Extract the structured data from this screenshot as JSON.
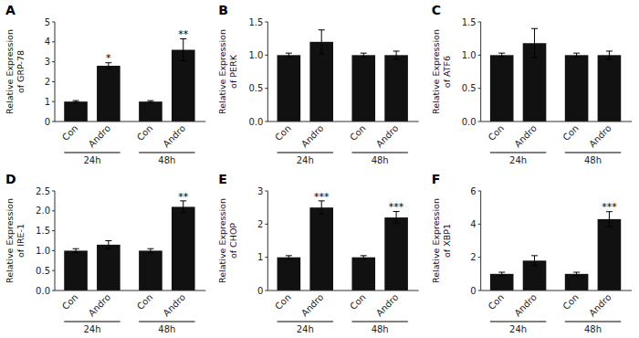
{
  "chart_data": [
    {
      "type": "bar",
      "title": "A",
      "ylabel": "Relative Expression\nof GRP-78",
      "categories": [
        "Con",
        "Andro",
        "Con",
        "Andro"
      ],
      "values": [
        1.0,
        2.8,
        1.0,
        3.6
      ],
      "errors": [
        0.05,
        0.15,
        0.05,
        0.55
      ],
      "significance": [
        null,
        "*",
        null,
        "**"
      ],
      "groups": [
        "24h",
        "48h"
      ],
      "color": "#111111",
      "ylim": [
        0,
        5
      ],
      "yticks": [
        0,
        1,
        2,
        3,
        4,
        5
      ],
      "grid": false
    },
    {
      "type": "bar",
      "title": "B",
      "ylabel": "Relative Expression\nof PERK",
      "categories": [
        "Con",
        "Andro",
        "Con",
        "Andro"
      ],
      "values": [
        1.0,
        1.2,
        1.0,
        1.0
      ],
      "errors": [
        0.03,
        0.18,
        0.03,
        0.06
      ],
      "significance": [
        null,
        null,
        null,
        null
      ],
      "groups": [
        "24h",
        "48h"
      ],
      "color": "#111111",
      "ylim": [
        0,
        1.5
      ],
      "yticks": [
        {
          "value": 0,
          "label": "0.0"
        },
        0.5,
        {
          "value": 1,
          "label": "1.0"
        },
        1.5
      ],
      "grid": false
    },
    {
      "type": "bar",
      "title": "C",
      "ylabel": "Relative Expression\nof ATF6",
      "categories": [
        "Con",
        "Andro",
        "Con",
        "Andro"
      ],
      "values": [
        1.0,
        1.18,
        1.0,
        1.0
      ],
      "errors": [
        0.03,
        0.22,
        0.03,
        0.06
      ],
      "significance": [
        null,
        null,
        null,
        null
      ],
      "groups": [
        "24h",
        "48h"
      ],
      "color": "#111111",
      "ylim": [
        0,
        1.5
      ],
      "yticks": [
        {
          "value": 0,
          "label": "0.0"
        },
        0.5,
        {
          "value": 1,
          "label": "1.0"
        },
        1.5
      ],
      "grid": false
    },
    {
      "type": "bar",
      "title": "D",
      "ylabel": "Relative Expression\nof IRE-1",
      "categories": [
        "Con",
        "Andro",
        "Con",
        "Andro"
      ],
      "values": [
        1.0,
        1.15,
        1.0,
        2.1
      ],
      "errors": [
        0.05,
        0.1,
        0.05,
        0.15
      ],
      "significance": [
        null,
        null,
        null,
        "**"
      ],
      "groups": [
        "24h",
        "48h"
      ],
      "color": "#111111",
      "ylim": [
        0,
        2.5
      ],
      "yticks": [
        {
          "value": 0,
          "label": "0.0"
        },
        0.5,
        {
          "value": 1,
          "label": "1.0"
        },
        1.5,
        {
          "value": 2,
          "label": "2.0"
        },
        2.5
      ],
      "grid": false
    },
    {
      "type": "bar",
      "title": "E",
      "ylabel": "Relative Expression\nof CHOP",
      "categories": [
        "Con",
        "Andro",
        "Con",
        "Andro"
      ],
      "values": [
        1.0,
        2.5,
        1.0,
        2.2
      ],
      "errors": [
        0.05,
        0.2,
        0.05,
        0.18
      ],
      "significance": [
        null,
        "***",
        null,
        "***"
      ],
      "groups": [
        "24h",
        "48h"
      ],
      "color": "#111111",
      "ylim": [
        0,
        3
      ],
      "yticks": [
        0,
        1,
        2,
        3
      ],
      "grid": false
    },
    {
      "type": "bar",
      "title": "F",
      "ylabel": "Relative Expression\nof XBP1",
      "categories": [
        "Con",
        "Andro",
        "Con",
        "Andro"
      ],
      "values": [
        1.0,
        1.8,
        1.0,
        4.3
      ],
      "errors": [
        0.1,
        0.3,
        0.1,
        0.45
      ],
      "significance": [
        null,
        null,
        null,
        "***"
      ],
      "groups": [
        "24h",
        "48h"
      ],
      "color": "#111111",
      "ylim": [
        0,
        6
      ],
      "yticks": [
        0,
        2,
        4,
        6
      ],
      "grid": false
    }
  ]
}
